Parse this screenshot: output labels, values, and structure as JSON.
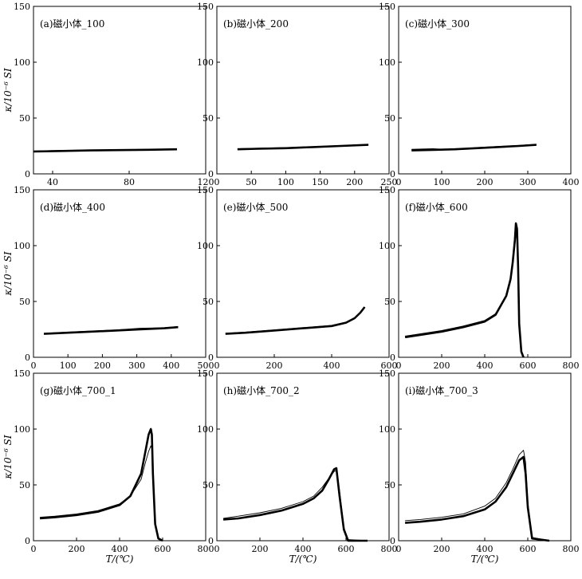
{
  "figure": {
    "ylabel_text": "κ/10⁻⁶ SI",
    "xlabel_text": "T/(℃)"
  },
  "chart_data": [
    {
      "type": "line",
      "title": "(a)磁小体_100",
      "xlim": [
        30,
        120
      ],
      "xticks": [
        40,
        80,
        120
      ],
      "ylim": [
        0,
        150
      ],
      "yticks": [
        0,
        50,
        100,
        150
      ],
      "ylabel": "κ/10⁻⁶ SI",
      "xlabel": "",
      "grid": false,
      "series": [
        {
          "kind": "heating",
          "x": [
            30,
            45,
            60,
            75,
            90,
            105
          ],
          "y": [
            20,
            20.5,
            21,
            21.3,
            21.6,
            22
          ]
        },
        {
          "kind": "cooling",
          "x": [
            30,
            45,
            60,
            75,
            90,
            105
          ],
          "y": [
            20.5,
            21,
            21.3,
            21.6,
            22,
            22.3
          ]
        }
      ]
    },
    {
      "type": "line",
      "title": "(b)磁小体_200",
      "xlim": [
        0,
        250
      ],
      "xticks": [
        0,
        50,
        100,
        150,
        200,
        250
      ],
      "ylim": [
        0,
        150
      ],
      "yticks": [
        0,
        50,
        100,
        150
      ],
      "ylabel": "",
      "xlabel": "",
      "grid": false,
      "series": [
        {
          "kind": "heating",
          "x": [
            30,
            60,
            100,
            140,
            180,
            220
          ],
          "y": [
            22,
            22.5,
            23,
            24,
            25,
            26
          ]
        },
        {
          "kind": "cooling",
          "x": [
            30,
            60,
            100,
            140,
            180,
            220
          ],
          "y": [
            22.5,
            23,
            23.5,
            24.3,
            25.3,
            26.3
          ]
        }
      ]
    },
    {
      "type": "line",
      "title": "(c)磁小体_300",
      "xlim": [
        0,
        400
      ],
      "xticks": [
        0,
        100,
        200,
        300,
        400
      ],
      "ylim": [
        0,
        150
      ],
      "yticks": [
        0,
        50,
        100,
        150
      ],
      "ylabel": "",
      "xlabel": "",
      "grid": false,
      "series": [
        {
          "kind": "heating",
          "x": [
            30,
            80,
            130,
            180,
            230,
            280,
            320
          ],
          "y": [
            21,
            21.5,
            22,
            23,
            24,
            25,
            26
          ]
        },
        {
          "kind": "cooling",
          "x": [
            30,
            80,
            130,
            180,
            230,
            280,
            320
          ],
          "y": [
            22,
            22.5,
            21.5,
            23.5,
            24.5,
            25.5,
            26.5
          ]
        }
      ]
    },
    {
      "type": "line",
      "title": "(d)磁小体_400",
      "xlim": [
        0,
        500
      ],
      "xticks": [
        0,
        100,
        200,
        300,
        400,
        500
      ],
      "ylim": [
        0,
        150
      ],
      "yticks": [
        0,
        50,
        100,
        150
      ],
      "ylabel": "κ/10⁻⁶ SI",
      "xlabel": "",
      "grid": false,
      "series": [
        {
          "kind": "heating",
          "x": [
            30,
            100,
            170,
            240,
            310,
            380,
            420
          ],
          "y": [
            21,
            22,
            23,
            24,
            25,
            26,
            27
          ]
        },
        {
          "kind": "cooling",
          "x": [
            30,
            100,
            170,
            240,
            310,
            380,
            420
          ],
          "y": [
            21.5,
            22.5,
            23.5,
            24.5,
            26,
            26.5,
            27.5
          ]
        }
      ]
    },
    {
      "type": "line",
      "title": "(e)磁小体_500",
      "xlim": [
        0,
        600
      ],
      "xticks": [
        0,
        200,
        400,
        600
      ],
      "ylim": [
        0,
        150
      ],
      "yticks": [
        0,
        50,
        100,
        150
      ],
      "ylabel": "",
      "xlabel": "",
      "grid": false,
      "series": [
        {
          "kind": "heating",
          "x": [
            30,
            100,
            200,
            300,
            400,
            450,
            480,
            500,
            515
          ],
          "y": [
            21,
            22,
            24,
            26,
            28,
            31,
            35,
            40,
            45
          ]
        },
        {
          "kind": "cooling",
          "x": [
            30,
            100,
            200,
            300,
            400,
            450,
            480,
            500,
            515
          ],
          "y": [
            21.5,
            22.5,
            24.5,
            26.5,
            28.5,
            31.5,
            35.5,
            40.5,
            45
          ]
        }
      ]
    },
    {
      "type": "line",
      "title": "(f)磁小体_600",
      "xlim": [
        0,
        800
      ],
      "xticks": [
        0,
        200,
        400,
        600,
        800
      ],
      "ylim": [
        0,
        150
      ],
      "yticks": [
        0,
        50,
        100,
        150
      ],
      "ylabel": "",
      "xlabel": "",
      "grid": false,
      "series": [
        {
          "kind": "heating",
          "x": [
            30,
            100,
            200,
            300,
            400,
            450,
            500,
            520,
            530,
            540,
            545,
            550,
            555,
            560,
            570,
            580
          ],
          "y": [
            18,
            20,
            23,
            27,
            32,
            38,
            55,
            70,
            85,
            105,
            120,
            115,
            80,
            30,
            5,
            0
          ]
        },
        {
          "kind": "cooling",
          "x": [
            30,
            100,
            200,
            300,
            400,
            450,
            500,
            520,
            530,
            540,
            545,
            550,
            555,
            560,
            570,
            580
          ],
          "y": [
            19,
            21,
            24,
            28,
            33,
            39,
            55,
            68,
            82,
            100,
            110,
            108,
            75,
            30,
            6,
            0
          ]
        }
      ]
    },
    {
      "type": "line",
      "title": "(g)磁小体_700_1",
      "xlim": [
        0,
        800
      ],
      "xticks": [
        0,
        200,
        400,
        600,
        800
      ],
      "ylim": [
        0,
        150
      ],
      "yticks": [
        0,
        50,
        100,
        150
      ],
      "ylabel": "κ/10⁻⁶ SI",
      "xlabel": "T/(℃)",
      "grid": false,
      "series": [
        {
          "kind": "heating",
          "x": [
            30,
            100,
            200,
            300,
            400,
            450,
            500,
            520,
            535,
            545,
            550,
            555,
            565,
            580,
            600
          ],
          "y": [
            20,
            21,
            23,
            26,
            32,
            40,
            60,
            80,
            95,
            100,
            95,
            60,
            15,
            2,
            0
          ]
        },
        {
          "kind": "cooling",
          "x": [
            30,
            100,
            200,
            300,
            400,
            450,
            500,
            520,
            535,
            545,
            550,
            555,
            565,
            580,
            600
          ],
          "y": [
            21,
            22,
            24,
            27,
            33,
            40,
            55,
            70,
            80,
            85,
            82,
            55,
            15,
            2,
            0
          ]
        }
      ]
    },
    {
      "type": "line",
      "title": "(h)磁小体_700_2",
      "xlim": [
        0,
        800
      ],
      "xticks": [
        0,
        200,
        400,
        600,
        800
      ],
      "ylim": [
        0,
        150
      ],
      "yticks": [
        0,
        50,
        100,
        150
      ],
      "ylabel": "",
      "xlabel": "T/(℃)",
      "grid": false,
      "series": [
        {
          "kind": "heating",
          "x": [
            30,
            100,
            200,
            300,
            400,
            450,
            490,
            520,
            545,
            555,
            570,
            590,
            610,
            700
          ],
          "y": [
            19,
            20,
            23,
            27,
            33,
            38,
            45,
            55,
            64,
            65,
            40,
            10,
            0,
            0
          ]
        },
        {
          "kind": "cooling",
          "x": [
            30,
            100,
            200,
            300,
            400,
            450,
            490,
            520,
            545,
            555,
            570,
            590,
            610,
            700
          ],
          "y": [
            20,
            22,
            25,
            29,
            35,
            40,
            48,
            56,
            62,
            63,
            45,
            12,
            1,
            0
          ]
        }
      ]
    },
    {
      "type": "line",
      "title": "(i)磁小体_700_3",
      "xlim": [
        0,
        800
      ],
      "xticks": [
        0,
        200,
        400,
        600,
        800
      ],
      "ylim": [
        0,
        150
      ],
      "yticks": [
        0,
        50,
        100,
        150
      ],
      "ylabel": "",
      "xlabel": "T/(℃)",
      "grid": false,
      "series": [
        {
          "kind": "heating",
          "x": [
            30,
            100,
            200,
            300,
            400,
            450,
            500,
            530,
            560,
            580,
            590,
            600,
            620,
            700
          ],
          "y": [
            16,
            17,
            19,
            22,
            28,
            35,
            48,
            60,
            72,
            75,
            60,
            30,
            2,
            0
          ]
        },
        {
          "kind": "cooling",
          "x": [
            30,
            100,
            200,
            300,
            400,
            450,
            500,
            530,
            560,
            580,
            590,
            600,
            620,
            700
          ],
          "y": [
            18,
            19,
            21,
            24,
            31,
            38,
            52,
            64,
            77,
            81,
            70,
            35,
            3,
            0
          ]
        }
      ]
    }
  ]
}
